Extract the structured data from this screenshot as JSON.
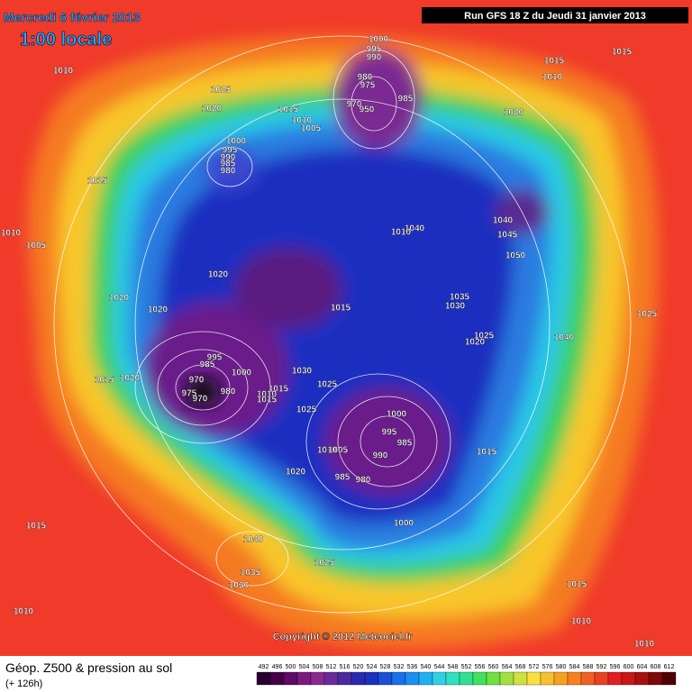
{
  "header": {
    "date": "Mercredi 6 février 2013",
    "time": "1:00 locale",
    "run": "Run GFS 18 Z du Jeudi 31 janvier 2013"
  },
  "copyright": "Copyright © 2012 Meteociel.fr",
  "legend": {
    "title": "Géop. Z500 & pression au sol",
    "lead": "(+ 126h)",
    "scale": [
      492,
      496,
      500,
      504,
      508,
      512,
      516,
      520,
      524,
      528,
      532,
      536,
      540,
      544,
      548,
      552,
      556,
      560,
      564,
      568,
      572,
      576,
      580,
      584,
      588,
      592,
      596,
      600,
      604,
      608,
      612
    ]
  },
  "pressure_labels": [
    1000,
    995,
    990,
    980,
    975,
    970,
    950,
    985,
    1010,
    1025,
    1020,
    1015,
    1010,
    1005,
    1000,
    995,
    990,
    985,
    980,
    1015,
    1010,
    1015,
    1020,
    1015,
    1005,
    1010,
    1040,
    1045,
    1050,
    1040,
    1010,
    1020,
    1020,
    1020,
    1015,
    1035,
    1030,
    1025,
    1020,
    1025,
    1040,
    995,
    985,
    1000,
    970,
    975,
    970,
    980,
    1015,
    1020,
    1030,
    1025,
    1015,
    1010,
    1015,
    1025,
    1000,
    995,
    985,
    990,
    1010,
    1005,
    985,
    980,
    1015,
    1020,
    1000,
    1015,
    1040,
    1035,
    1030,
    1025,
    1010,
    1015,
    1010,
    1010
  ]
}
